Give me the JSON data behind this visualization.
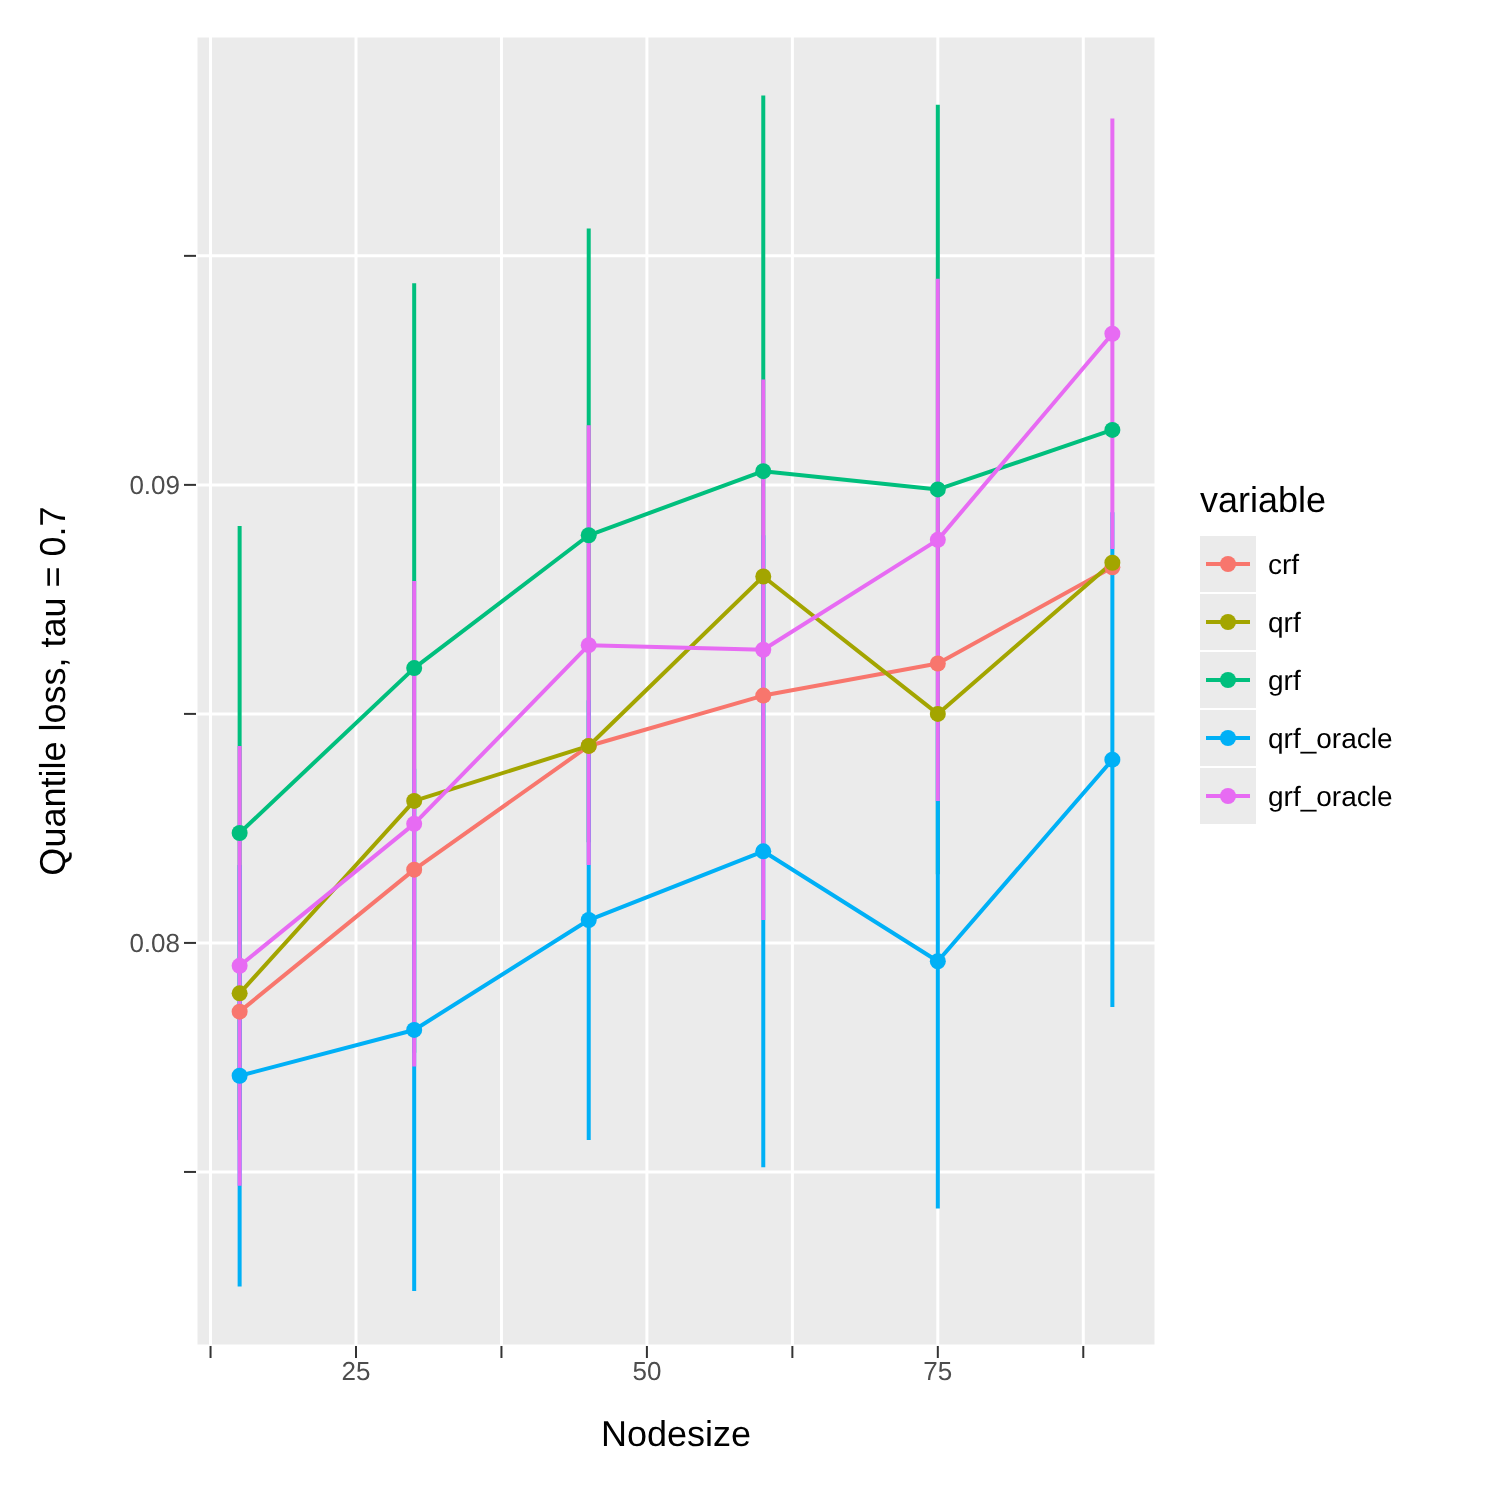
{
  "chart_data": {
    "type": "line",
    "xlabel": "Nodesize",
    "ylabel": "Quantile loss, tau = 0.7",
    "legend_title": "variable",
    "legend": "right",
    "grid": true,
    "marker": "circle",
    "line_style": "solid",
    "x": [
      15,
      30,
      45,
      60,
      75,
      90
    ],
    "xlim": [
      11.25,
      93.75
    ],
    "xticks": [
      {
        "value": 12.5,
        "label": null
      },
      25,
      {
        "value": 37.5,
        "label": null
      },
      50,
      {
        "value": 62.5,
        "label": null
      },
      75,
      {
        "value": 87.5,
        "label": null
      }
    ],
    "ylim": [
      0.0712,
      0.0998
    ],
    "yticks": [
      {
        "value": 0.075,
        "label": null
      },
      0.08,
      {
        "value": 0.085,
        "label": null
      },
      0.09,
      {
        "value": 0.095,
        "label": null
      }
    ],
    "series": [
      {
        "name": "crf",
        "color": "#f8766d",
        "values": [
          0.0785,
          0.0816,
          0.0843,
          0.0854,
          0.0861,
          0.0882
        ]
      },
      {
        "name": "qrf",
        "color": "#a3a500",
        "values": [
          0.0789,
          0.0831,
          0.0843,
          0.088,
          0.085,
          0.0883
        ]
      },
      {
        "name": "grf",
        "color": "#00bf7d",
        "values": [
          0.0824,
          0.086,
          0.0889,
          0.0903,
          0.0899,
          0.0912
        ],
        "errors": [
          0.0067,
          0.0084,
          0.0067,
          0.0082,
          0.0084,
          null
        ]
      },
      {
        "name": "qrf_oracle",
        "color": "#00b0f6",
        "values": [
          0.0771,
          0.0781,
          0.0805,
          0.082,
          0.0796,
          0.084
        ],
        "errors": [
          0.0046,
          0.0057,
          0.0048,
          0.0069,
          0.0054,
          0.0054
        ]
      },
      {
        "name": "grf_oracle",
        "color": "#e76bf3",
        "values": [
          0.0795,
          0.0826,
          0.0865,
          0.0864,
          0.0888,
          0.0933
        ],
        "errors": [
          0.0048,
          0.0053,
          0.0048,
          0.0059,
          0.0057,
          0.0047
        ]
      }
    ]
  }
}
